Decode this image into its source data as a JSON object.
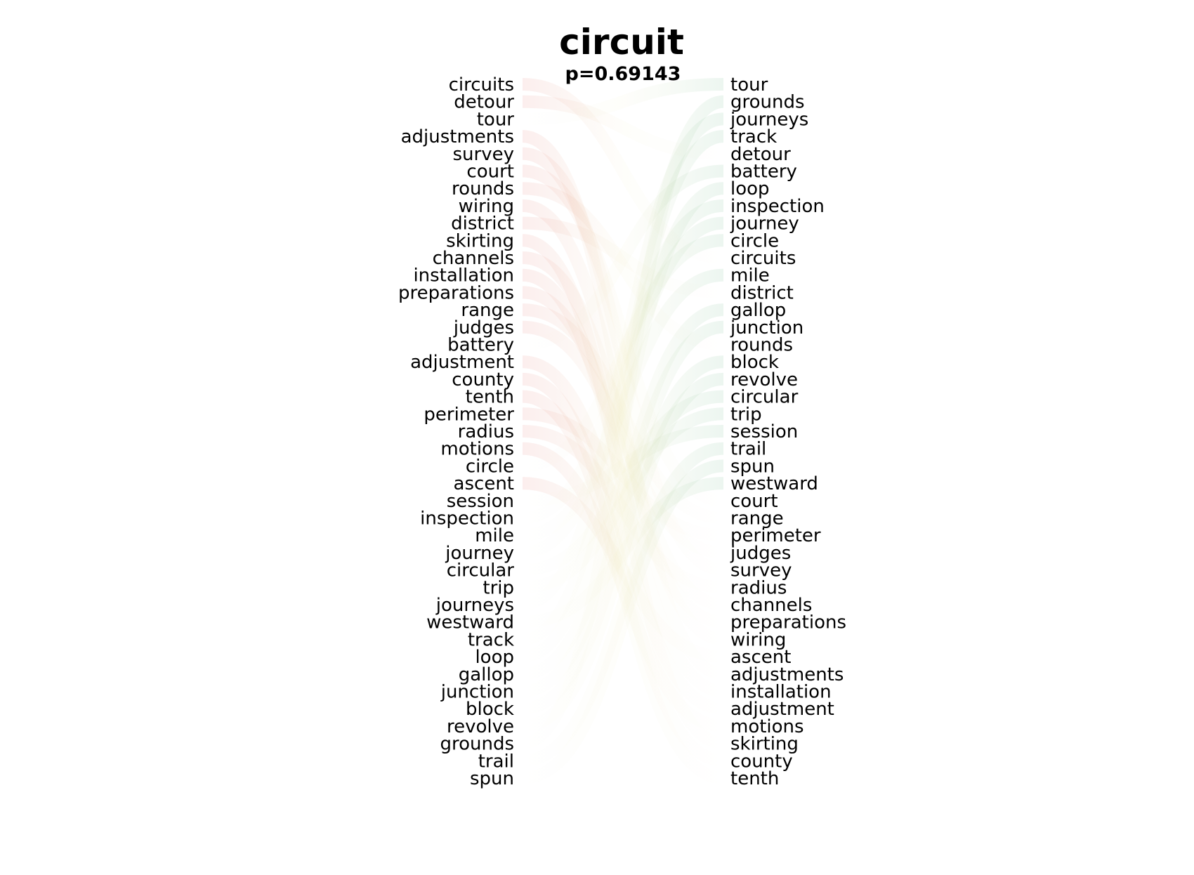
{
  "chart_data": {
    "type": "bump",
    "title": "circuit",
    "subtitle": "p=0.69143",
    "left_words": [
      "circuits",
      "detour",
      "tour",
      "adjustments",
      "survey",
      "court",
      "rounds",
      "wiring",
      "district",
      "skirting",
      "channels",
      "installation",
      "preparations",
      "range",
      "judges",
      "battery",
      "adjustment",
      "county",
      "tenth",
      "perimeter",
      "radius",
      "motions",
      "circle",
      "ascent",
      "session",
      "inspection",
      "mile",
      "journey",
      "circular",
      "trip",
      "journeys",
      "westward",
      "track",
      "loop",
      "gallop",
      "junction",
      "block",
      "revolve",
      "grounds",
      "trail",
      "spun"
    ],
    "right_words": [
      "tour",
      "grounds",
      "journeys",
      "track",
      "detour",
      "battery",
      "loop",
      "inspection",
      "journey",
      "circle",
      "circuits",
      "mile",
      "district",
      "gallop",
      "junction",
      "rounds",
      "block",
      "revolve",
      "circular",
      "trip",
      "session",
      "trail",
      "spun",
      "westward",
      "court",
      "range",
      "perimeter",
      "judges",
      "survey",
      "radius",
      "channels",
      "preparations",
      "wiring",
      "ascent",
      "adjustments",
      "installation",
      "adjustment",
      "motions",
      "skirting",
      "county",
      "tenth"
    ],
    "colors": {
      "rise": "#2e9a5a",
      "fall": "#d9423a",
      "text": "#000000"
    }
  }
}
